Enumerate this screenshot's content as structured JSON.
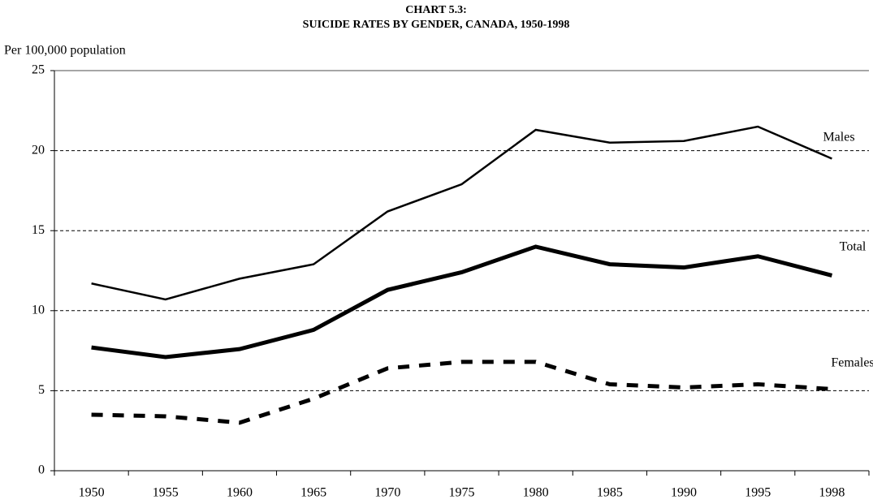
{
  "chart_data": {
    "type": "line",
    "title": "CHART 5.3:",
    "subtitle": "SUICIDE RATES BY GENDER, CANADA, 1950-1998",
    "y_label": "Per 100,000 population",
    "categories": [
      "1950",
      "1955",
      "1960",
      "1965",
      "1970",
      "1975",
      "1980",
      "1985",
      "1990",
      "1995",
      "1998"
    ],
    "series": [
      {
        "name": "Males",
        "color": "#000000",
        "width": 2.5,
        "dash": false,
        "values": [
          11.7,
          10.7,
          12.0,
          12.9,
          16.2,
          17.9,
          21.3,
          20.5,
          20.6,
          21.5,
          19.5
        ]
      },
      {
        "name": "Total",
        "color": "#000000",
        "width": 5,
        "dash": false,
        "values": [
          7.7,
          7.1,
          7.6,
          8.8,
          11.3,
          12.4,
          14.0,
          12.9,
          12.7,
          13.4,
          12.2
        ]
      },
      {
        "name": "Females",
        "color": "#000000",
        "width": 5,
        "dash": true,
        "values": [
          3.5,
          3.4,
          3.0,
          4.5,
          6.4,
          6.8,
          6.8,
          5.4,
          5.2,
          5.4,
          5.1
        ]
      }
    ],
    "ylim": [
      0,
      25
    ],
    "yticks": [
      0,
      5,
      10,
      15,
      20,
      25
    ],
    "grid": true
  }
}
